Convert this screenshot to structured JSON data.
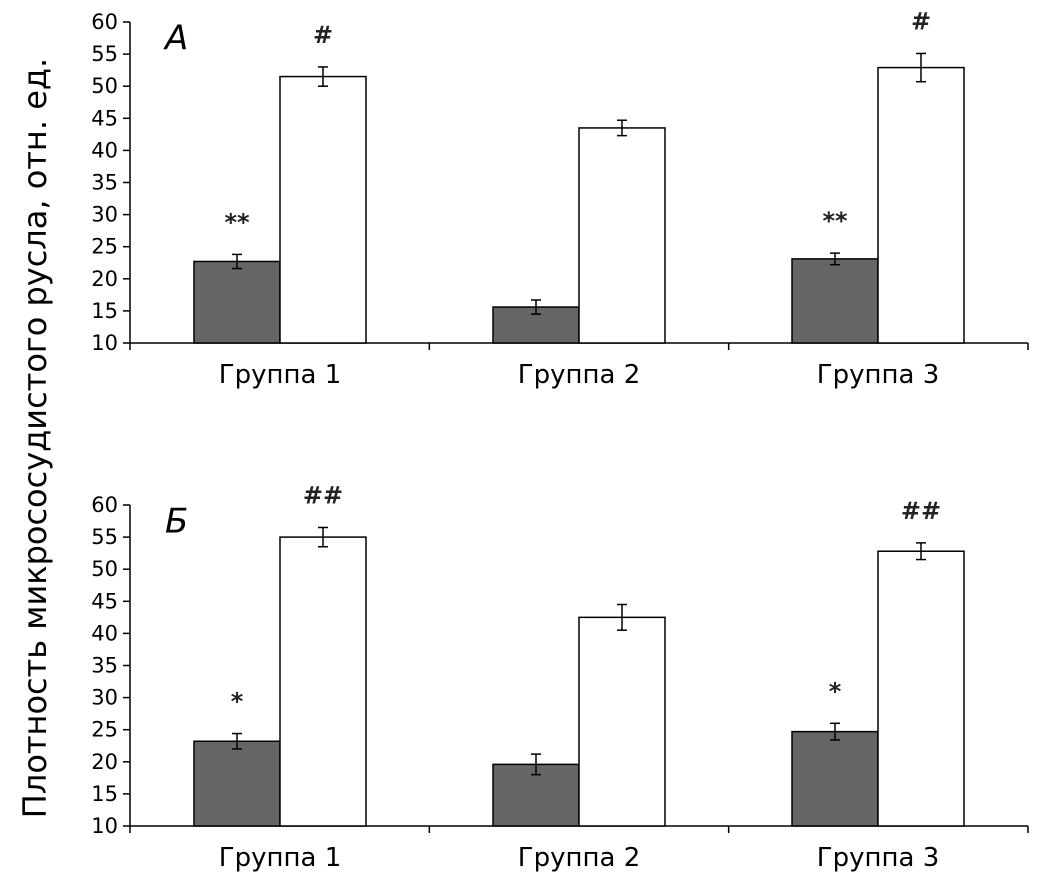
{
  "ylabel": "Плотность микрососудистого русла, отн. ед.",
  "colors": {
    "dark": "#666666",
    "light": "#ffffff",
    "stroke": "#000000"
  },
  "chart_data": [
    {
      "type": "bar",
      "panel_label": "А",
      "categories": [
        "Группа 1",
        "Группа 2",
        "Группа 3"
      ],
      "ylim": [
        10,
        60
      ],
      "yticks": [
        10,
        15,
        20,
        25,
        30,
        35,
        40,
        45,
        50,
        55,
        60
      ],
      "series": [
        {
          "name": "dark",
          "values": [
            22.7,
            15.6,
            23.1
          ],
          "errors": [
            1.1,
            1.1,
            0.9
          ],
          "annotations": [
            "**",
            "",
            "**"
          ]
        },
        {
          "name": "light",
          "values": [
            51.5,
            43.5,
            52.9
          ],
          "errors": [
            1.5,
            1.2,
            2.2
          ],
          "annotations": [
            "#",
            "",
            "#"
          ]
        }
      ]
    },
    {
      "type": "bar",
      "panel_label": "Б",
      "categories": [
        "Группа 1",
        "Группа 2",
        "Группа 3"
      ],
      "ylim": [
        10,
        60
      ],
      "yticks": [
        10,
        15,
        20,
        25,
        30,
        35,
        40,
        45,
        50,
        55,
        60
      ],
      "series": [
        {
          "name": "dark",
          "values": [
            23.2,
            19.6,
            24.7
          ],
          "errors": [
            1.2,
            1.6,
            1.3
          ],
          "annotations": [
            "*",
            "",
            "*"
          ]
        },
        {
          "name": "light",
          "values": [
            55.0,
            42.5,
            52.8
          ],
          "errors": [
            1.5,
            2.0,
            1.3
          ],
          "annotations": [
            "##",
            "",
            "##"
          ]
        }
      ]
    }
  ]
}
